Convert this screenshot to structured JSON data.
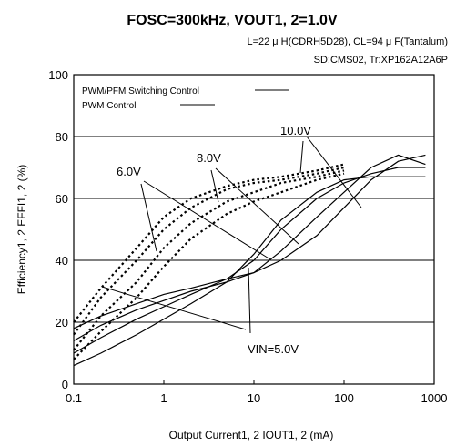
{
  "chart_data": {
    "type": "line",
    "title": "FOSC=300kHz, VOUT1, 2=1.0V",
    "conditions_line1": "L=22 μ H(CDRH5D28), CL=94 μ F(Tantalum)",
    "conditions_line2": "SD:CMS02, Tr:XP162A12A6P",
    "xlabel": "Output Current1, 2  IOUT1, 2 (mA)",
    "ylabel": "Efficiency1, 2 EFFI1, 2  (%)",
    "x_scale": "log",
    "xlim": [
      0.1,
      1000
    ],
    "ylim": [
      0,
      100
    ],
    "x_ticks": [
      "0.1",
      "1",
      "10",
      "100",
      "1000"
    ],
    "y_ticks": [
      "0",
      "20",
      "40",
      "60",
      "80",
      "100"
    ],
    "grid": "horizontal",
    "legend": {
      "placement": "top-left",
      "entries": [
        {
          "label": "PWM/PFM Switching Control",
          "style": "solid"
        },
        {
          "label": "PWM Control",
          "style": "solid"
        }
      ]
    },
    "series": [
      {
        "group": "PWM/PFM Switching Control",
        "style": "dotted",
        "x": [
          0.1,
          0.2,
          0.5,
          1,
          2,
          5,
          10,
          20,
          50,
          100
        ],
        "y": [
          20,
          31,
          44,
          54,
          60,
          64,
          66,
          67,
          69,
          71
        ]
      },
      {
        "group": "PWM/PFM Switching Control",
        "style": "dotted",
        "x": [
          0.1,
          0.2,
          0.5,
          1,
          2,
          5,
          10,
          20,
          50,
          100
        ],
        "y": [
          16,
          28,
          40,
          50,
          57,
          63,
          65,
          66,
          68,
          70
        ]
      },
      {
        "group": "PWM/PFM Switching Control",
        "style": "dotted",
        "x": [
          0.1,
          0.2,
          0.5,
          1,
          2,
          5,
          10,
          20,
          50,
          100
        ],
        "y": [
          11,
          22,
          33,
          44,
          52,
          59,
          62,
          65,
          67,
          69
        ]
      },
      {
        "group": "PWM/PFM Switching Control",
        "style": "dotted",
        "x": [
          0.1,
          0.2,
          0.5,
          1,
          2,
          5,
          10,
          20,
          50,
          100
        ],
        "y": [
          8,
          17,
          28,
          38,
          47,
          55,
          59,
          62,
          66,
          68
        ]
      },
      {
        "group": "PWM Control",
        "style": "solid",
        "x": [
          0.1,
          0.2,
          0.5,
          1,
          2,
          5,
          10,
          20,
          50,
          100,
          200,
          400,
          800
        ],
        "y": [
          18,
          22,
          26,
          29,
          31,
          34,
          36,
          40,
          48,
          57,
          66,
          72,
          74
        ]
      },
      {
        "group": "PWM Control",
        "style": "solid",
        "x": [
          0.1,
          0.2,
          0.5,
          1,
          2,
          5,
          10,
          20,
          50,
          100,
          200,
          400,
          800
        ],
        "y": [
          14,
          19,
          24,
          27,
          30,
          33,
          36,
          43,
          54,
          62,
          70,
          74,
          71
        ]
      },
      {
        "group": "PWM Control",
        "style": "solid",
        "x": [
          0.1,
          0.2,
          0.5,
          1,
          2,
          5,
          10,
          20,
          50,
          100,
          200,
          400,
          800
        ],
        "y": [
          10,
          15,
          21,
          25,
          29,
          34,
          40,
          50,
          60,
          65,
          68,
          70,
          70
        ]
      },
      {
        "group": "PWM Control",
        "style": "solid",
        "x": [
          0.1,
          0.2,
          0.5,
          1,
          2,
          5,
          10,
          20,
          50,
          100,
          200,
          400,
          800
        ],
        "y": [
          6,
          10,
          16,
          21,
          26,
          33,
          42,
          53,
          62,
          66,
          67,
          67,
          67
        ]
      }
    ],
    "annotations": [
      "10.0V",
      "8.0V",
      "6.0V",
      "VIN=5.0V"
    ]
  }
}
